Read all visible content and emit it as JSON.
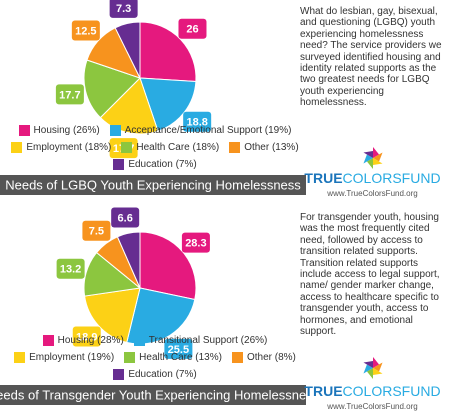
{
  "chart_data": [
    {
      "type": "pie",
      "title": "Needs of LGBQ Youth Experiencing Homelessness",
      "categories": [
        "Housing (26%)",
        "Acceptance/Emotional Support (19%)",
        "Employment (18%)",
        "Health Care (18%)",
        "Other (13%)",
        "Education (7%)"
      ],
      "values": [
        26,
        18.8,
        17.7,
        17.7,
        12.5,
        7.3
      ],
      "colors": [
        "#e5197e",
        "#29abe2",
        "#fcd116",
        "#8cc63f",
        "#f7931e",
        "#662d91"
      ]
    },
    {
      "type": "pie",
      "title": "Needs of Transgender Youth Experiencing Homelessness",
      "categories": [
        "Housing (28%)",
        "Transitional Support (26%)",
        "Employment (19%)",
        "Health Care (13%)",
        "Other (8%)",
        "Education (7%)"
      ],
      "values": [
        28.3,
        25.5,
        18.9,
        13.2,
        7.5,
        6.6
      ],
      "colors": [
        "#e5197e",
        "#29abe2",
        "#fcd116",
        "#8cc63f",
        "#f7931e",
        "#662d91"
      ]
    }
  ],
  "panels": [
    {
      "description": "What do lesbian, gay, bisexual, and questioning (LGBQ) youth experiencing homelessness need? The service providers we surveyed identified housing and identity related supports as the two greatest needs for LGBQ youth experiencing homelessness.",
      "logo": {
        "brand_bold": "TRUE",
        "brand_rest": "COLORSFUND",
        "url": "www.TrueColorsFund.org"
      }
    },
    {
      "description": "For transgender youth, housing was the most frequently cited need, followed by access to transition related supports. Transition related supports include access to legal support, name/ gender marker change, access to healthcare specific to transgender youth, access to hormones, and emotional support.",
      "logo": {
        "brand_bold": "TRUE",
        "brand_rest": "COLORSFUND",
        "url": "www.TrueColorsFund.org"
      }
    }
  ]
}
